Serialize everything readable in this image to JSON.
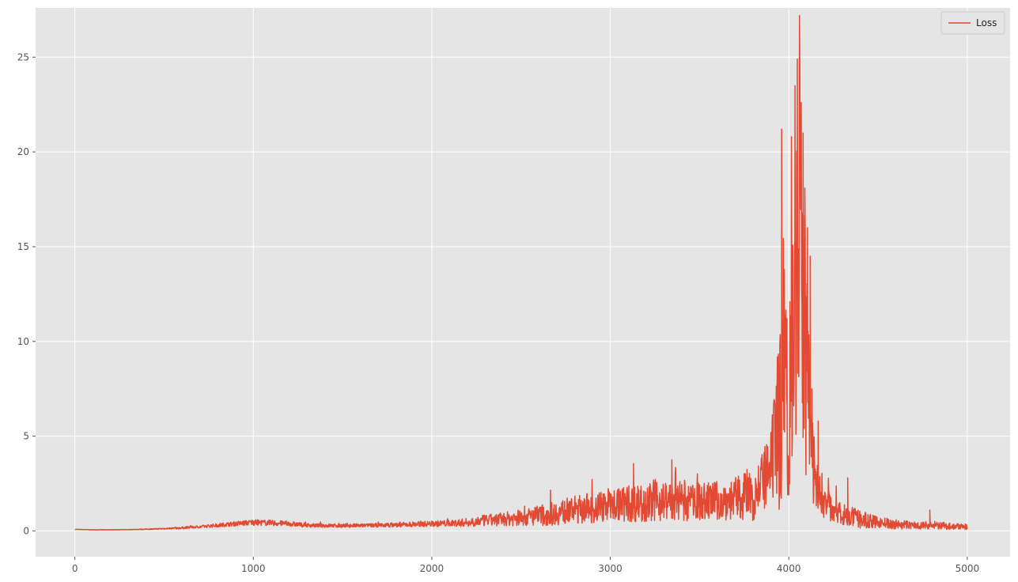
{
  "chart_data": {
    "type": "line",
    "title": "",
    "xlabel": "",
    "ylabel": "",
    "xlim": [
      -220,
      5240
    ],
    "ylim": [
      -1.36,
      27.6
    ],
    "xticks": [
      0,
      1000,
      2000,
      3000,
      4000,
      5000
    ],
    "yticks": [
      0,
      5,
      10,
      15,
      20,
      25
    ],
    "grid": true,
    "legend_position": "top-right",
    "colors": {
      "background": "#E5E5E5",
      "grid": "#FFFFFF",
      "series": "#E24A33"
    },
    "series": [
      {
        "name": "Loss",
        "x": [
          0,
          100,
          200,
          300,
          400,
          500,
          600,
          700,
          800,
          900,
          1000,
          1100,
          1200,
          1300,
          1400,
          1500,
          1600,
          1700,
          1800,
          1900,
          2000,
          2100,
          2200,
          2300,
          2400,
          2500,
          2600,
          2700,
          2800,
          2900,
          3000,
          3100,
          3200,
          3300,
          3400,
          3500,
          3600,
          3700,
          3800,
          3850,
          3900,
          3950,
          3970,
          4000,
          4020,
          4040,
          4060,
          4080,
          4100,
          4120,
          4150,
          4200,
          4300,
          4400,
          4500,
          4600,
          4700,
          4800,
          4900,
          5000
        ],
        "y": [
          0.08,
          0.06,
          0.06,
          0.07,
          0.09,
          0.12,
          0.16,
          0.22,
          0.3,
          0.38,
          0.45,
          0.42,
          0.38,
          0.3,
          0.28,
          0.28,
          0.28,
          0.3,
          0.32,
          0.35,
          0.38,
          0.4,
          0.45,
          0.55,
          0.62,
          0.7,
          0.8,
          0.95,
          1.1,
          1.25,
          1.4,
          1.45,
          1.5,
          1.6,
          1.6,
          1.55,
          1.6,
          1.7,
          2.0,
          2.5,
          3.2,
          6.0,
          9.5,
          6.5,
          13.0,
          15.0,
          16.0,
          12.0,
          8.5,
          5.0,
          2.5,
          1.5,
          0.9,
          0.6,
          0.45,
          0.35,
          0.3,
          0.3,
          0.25,
          0.22
        ],
        "noise": [
          0.01,
          0.01,
          0.01,
          0.01,
          0.02,
          0.03,
          0.05,
          0.07,
          0.1,
          0.12,
          0.15,
          0.15,
          0.14,
          0.1,
          0.1,
          0.1,
          0.1,
          0.1,
          0.12,
          0.14,
          0.15,
          0.18,
          0.22,
          0.3,
          0.35,
          0.45,
          0.55,
          0.65,
          0.75,
          0.85,
          0.9,
          1.0,
          1.0,
          1.05,
          1.1,
          1.0,
          1.05,
          1.1,
          1.5,
          1.6,
          2.0,
          5.0,
          7.0,
          6.0,
          9.0,
          11.0,
          10.0,
          8.0,
          6.0,
          3.5,
          1.5,
          0.9,
          0.6,
          0.45,
          0.3,
          0.25,
          0.2,
          0.2,
          0.18,
          0.15
        ],
        "peaks": [
          [
            3960,
            21.2
          ],
          [
            3975,
            13.8
          ],
          [
            3990,
            11.2
          ],
          [
            4015,
            20.8
          ],
          [
            4035,
            23.5
          ],
          [
            4048,
            24.9
          ],
          [
            4060,
            27.2
          ],
          [
            4080,
            21.0
          ],
          [
            4090,
            18.1
          ],
          [
            4105,
            16.0
          ],
          [
            4120,
            14.5
          ],
          [
            4130,
            7.5
          ],
          [
            4165,
            5.8
          ],
          [
            4330,
            2.8
          ],
          [
            3130,
            3.55
          ],
          [
            3345,
            3.75
          ],
          [
            2665,
            2.15
          ],
          [
            4790,
            1.1
          ]
        ]
      }
    ]
  }
}
